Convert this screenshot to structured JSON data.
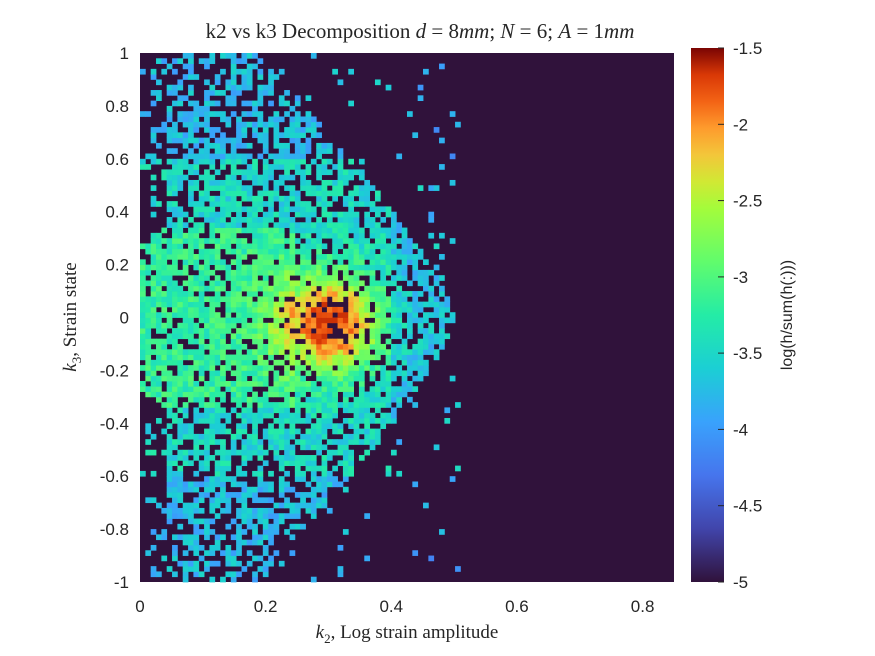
{
  "chart_data": {
    "type": "heatmap",
    "title": "k2 vs k3 Decomposition d = 8mm; N = 6; A = 1mm",
    "title_parts": {
      "prefix": "k2 vs k3 Decomposition ",
      "d_var": "d",
      "d_eq": " = 8",
      "d_unit": "mm",
      "n_var": "N",
      "n_eq": " = 6; ",
      "a_var": "A",
      "a_eq": " = 1",
      "a_unit": "mm"
    },
    "xlabel_parts": {
      "var": "k",
      "sub": "2",
      "rest": ", Log strain amplitude"
    },
    "ylabel_parts": {
      "var": "k",
      "sub": "3",
      "rest": ", Strain state"
    },
    "xlim": [
      0,
      0.85
    ],
    "ylim": [
      -1,
      1
    ],
    "xticks": [
      "0",
      "0.2",
      "0.4",
      "0.6",
      "0.8"
    ],
    "yticks": [
      "1",
      "0.8",
      "0.6",
      "0.4",
      "0.2",
      "0",
      "-0.2",
      "-0.4",
      "-0.6",
      "-0.8",
      "-1"
    ],
    "colorbar": {
      "label": "log(h/sum(h(:)))",
      "range": [
        -5,
        -1.5
      ],
      "ticks": [
        "-1.5",
        "-2",
        "-2.5",
        "-3",
        "-3.5",
        "-4",
        "-4.5",
        "-5"
      ],
      "colormap": "turbo"
    },
    "grid": false,
    "background_value": -5,
    "bins": {
      "x_count": 100,
      "y_count": 100,
      "dx": 0.0085,
      "dy": 0.02
    },
    "density_description": {
      "peak_center": [
        0.3,
        -0.02
      ],
      "peak_value": -1.7,
      "occupied_x_max": 0.5,
      "sparse_region": "x < 0.35 across full y range, density decreasing with |y|"
    }
  }
}
